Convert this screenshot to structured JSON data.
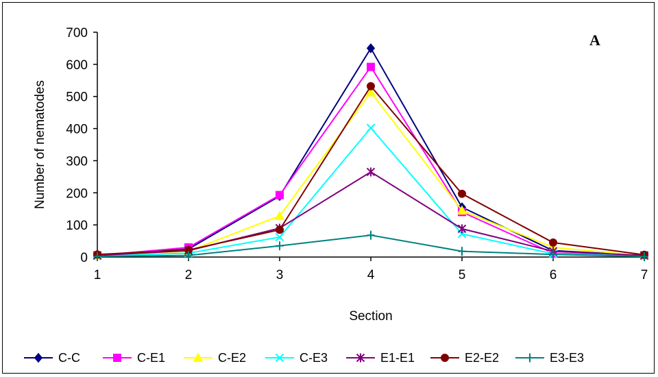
{
  "chart_data": {
    "type": "line",
    "panel_label": "A",
    "xlabel": "Section",
    "ylabel": "Number of nematodes",
    "x": [
      1,
      2,
      3,
      4,
      5,
      6,
      7
    ],
    "xlim": [
      1,
      7
    ],
    "ylim": [
      0,
      700
    ],
    "yticks": [
      0,
      100,
      200,
      300,
      400,
      500,
      600,
      700
    ],
    "grid": false,
    "legend_position": "bottom",
    "series": [
      {
        "name": "C-C",
        "color": "#000080",
        "marker": "diamond",
        "values": [
          5,
          25,
          190,
          650,
          155,
          20,
          5
        ]
      },
      {
        "name": "C-E1",
        "color": "#ff00ff",
        "marker": "square",
        "values": [
          5,
          30,
          193,
          592,
          140,
          12,
          5
        ]
      },
      {
        "name": "C-E2",
        "color": "#ffff00",
        "marker": "triangle",
        "values": [
          4,
          18,
          128,
          513,
          145,
          30,
          4
        ]
      },
      {
        "name": "C-E3",
        "color": "#00ffff",
        "marker": "x",
        "values": [
          3,
          12,
          62,
          402,
          72,
          10,
          3
        ]
      },
      {
        "name": "E1-E1",
        "color": "#800080",
        "marker": "star",
        "values": [
          5,
          20,
          90,
          265,
          88,
          18,
          5
        ]
      },
      {
        "name": "E2-E2",
        "color": "#800000",
        "marker": "circle",
        "values": [
          8,
          22,
          85,
          532,
          197,
          45,
          7
        ]
      },
      {
        "name": "E3-E3",
        "color": "#008080",
        "marker": "plus",
        "values": [
          2,
          5,
          35,
          68,
          18,
          8,
          2
        ]
      }
    ]
  }
}
